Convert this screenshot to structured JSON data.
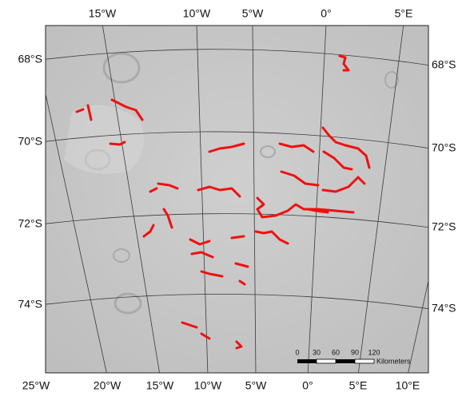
{
  "map": {
    "top_labels": [
      "15°W",
      "10°W",
      "5°W",
      "0°",
      "5°E"
    ],
    "bottom_labels": [
      "25°W",
      "20°W",
      "15°W",
      "10°W",
      "5°W",
      "0°",
      "5°E",
      "10°E"
    ],
    "left_labels": [
      "68°S",
      "70°S",
      "72°S",
      "74°S"
    ],
    "right_labels": [
      "68°S",
      "70°S",
      "72°S",
      "74°S"
    ],
    "scale_bar": {
      "ticks": [
        "0",
        "30",
        "60",
        "90",
        "120"
      ],
      "unit": "Kilometers"
    }
  }
}
